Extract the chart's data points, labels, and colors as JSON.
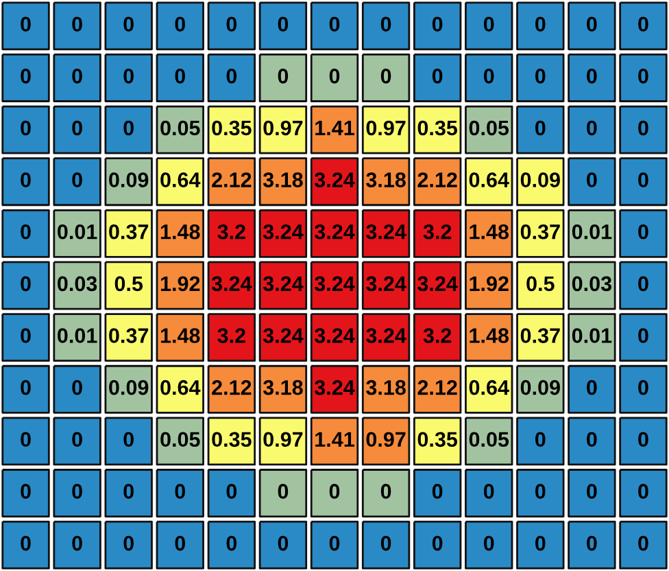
{
  "chart_data": {
    "type": "heatmap",
    "categories": [
      null,
      null,
      null,
      null,
      null,
      null,
      null,
      null,
      null,
      null,
      null,
      null,
      null
    ],
    "y_categories": [
      null,
      null,
      null,
      null,
      null,
      null,
      null,
      null,
      null,
      null,
      null
    ],
    "cells": [
      [
        0,
        0,
        0,
        0,
        0,
        0,
        0,
        0,
        0,
        0,
        0,
        0,
        0
      ],
      [
        0,
        0,
        0,
        0,
        0,
        0,
        0,
        0,
        0,
        0,
        0,
        0,
        0
      ],
      [
        0,
        0,
        0,
        0.05,
        0.35,
        0.97,
        1.41,
        0.97,
        0.35,
        0.05,
        0,
        0,
        0
      ],
      [
        0,
        0,
        0.09,
        0.64,
        2.12,
        3.18,
        3.24,
        3.18,
        2.12,
        0.64,
        0.09,
        0,
        0
      ],
      [
        0,
        0.01,
        0.37,
        1.48,
        3.2,
        3.24,
        3.24,
        3.24,
        3.2,
        1.48,
        0.37,
        0.01,
        0
      ],
      [
        0,
        0.03,
        0.5,
        1.92,
        3.24,
        3.24,
        3.24,
        3.24,
        3.24,
        1.92,
        0.5,
        0.03,
        0
      ],
      [
        0,
        0.01,
        0.37,
        1.48,
        3.2,
        3.24,
        3.24,
        3.24,
        3.2,
        1.48,
        0.37,
        0.01,
        0
      ],
      [
        0,
        0,
        0.09,
        0.64,
        2.12,
        3.18,
        3.24,
        3.18,
        2.12,
        0.64,
        0.09,
        0,
        0
      ],
      [
        0,
        0,
        0,
        0.05,
        0.35,
        0.97,
        1.41,
        0.97,
        0.35,
        0.05,
        0,
        0,
        0
      ],
      [
        0,
        0,
        0,
        0,
        0,
        0,
        0,
        0,
        0,
        0,
        0,
        0,
        0
      ],
      [
        0,
        0,
        0,
        0,
        0,
        0,
        0,
        0,
        0,
        0,
        0,
        0,
        0
      ]
    ],
    "colors": [
      [
        "#2a8ac6",
        "#2a8ac6",
        "#2a8ac6",
        "#2a8ac6",
        "#2a8ac6",
        "#2a8ac6",
        "#2a8ac6",
        "#2a8ac6",
        "#2a8ac6",
        "#2a8ac6",
        "#2a8ac6",
        "#2a8ac6",
        "#2a8ac6"
      ],
      [
        "#2a8ac6",
        "#2a8ac6",
        "#2a8ac6",
        "#2a8ac6",
        "#2a8ac6",
        "#a2c3a0",
        "#a2c3a0",
        "#a2c3a0",
        "#2a8ac6",
        "#2a8ac6",
        "#2a8ac6",
        "#2a8ac6",
        "#2a8ac6"
      ],
      [
        "#2a8ac6",
        "#2a8ac6",
        "#2a8ac6",
        "#a2c3a0",
        "#fafa6e",
        "#fafa6e",
        "#f68b3c",
        "#fafa6e",
        "#fafa6e",
        "#a2c3a0",
        "#2a8ac6",
        "#2a8ac6",
        "#2a8ac6"
      ],
      [
        "#2a8ac6",
        "#2a8ac6",
        "#a2c3a0",
        "#fafa6e",
        "#f68b3c",
        "#f68b3c",
        "#e3151b",
        "#f68b3c",
        "#f68b3c",
        "#fafa6e",
        "#fafa6e",
        "#2a8ac6",
        "#2a8ac6"
      ],
      [
        "#2a8ac6",
        "#a2c3a0",
        "#fafa6e",
        "#f68b3c",
        "#e3151b",
        "#e3151b",
        "#e3151b",
        "#e3151b",
        "#e3151b",
        "#f68b3c",
        "#fafa6e",
        "#a2c3a0",
        "#2a8ac6"
      ],
      [
        "#2a8ac6",
        "#a2c3a0",
        "#fafa6e",
        "#f68b3c",
        "#e3151b",
        "#e3151b",
        "#e3151b",
        "#e3151b",
        "#e3151b",
        "#f68b3c",
        "#fafa6e",
        "#a2c3a0",
        "#2a8ac6"
      ],
      [
        "#2a8ac6",
        "#a2c3a0",
        "#fafa6e",
        "#f68b3c",
        "#e3151b",
        "#e3151b",
        "#e3151b",
        "#e3151b",
        "#e3151b",
        "#f68b3c",
        "#fafa6e",
        "#a2c3a0",
        "#2a8ac6"
      ],
      [
        "#2a8ac6",
        "#2a8ac6",
        "#a2c3a0",
        "#fafa6e",
        "#f68b3c",
        "#f68b3c",
        "#e3151b",
        "#f68b3c",
        "#f68b3c",
        "#fafa6e",
        "#a2c3a0",
        "#2a8ac6",
        "#2a8ac6"
      ],
      [
        "#2a8ac6",
        "#2a8ac6",
        "#2a8ac6",
        "#a2c3a0",
        "#fafa6e",
        "#fafa6e",
        "#f68b3c",
        "#f68b3c",
        "#fafa6e",
        "#a2c3a0",
        "#2a8ac6",
        "#2a8ac6",
        "#2a8ac6"
      ],
      [
        "#2a8ac6",
        "#2a8ac6",
        "#2a8ac6",
        "#2a8ac6",
        "#2a8ac6",
        "#a2c3a0",
        "#a2c3a0",
        "#a2c3a0",
        "#2a8ac6",
        "#2a8ac6",
        "#2a8ac6",
        "#2a8ac6",
        "#2a8ac6"
      ],
      [
        "#2a8ac6",
        "#2a8ac6",
        "#2a8ac6",
        "#2a8ac6",
        "#2a8ac6",
        "#2a8ac6",
        "#2a8ac6",
        "#2a8ac6",
        "#2a8ac6",
        "#2a8ac6",
        "#2a8ac6",
        "#2a8ac6",
        "#2a8ac6"
      ]
    ],
    "data_labels": true
  }
}
